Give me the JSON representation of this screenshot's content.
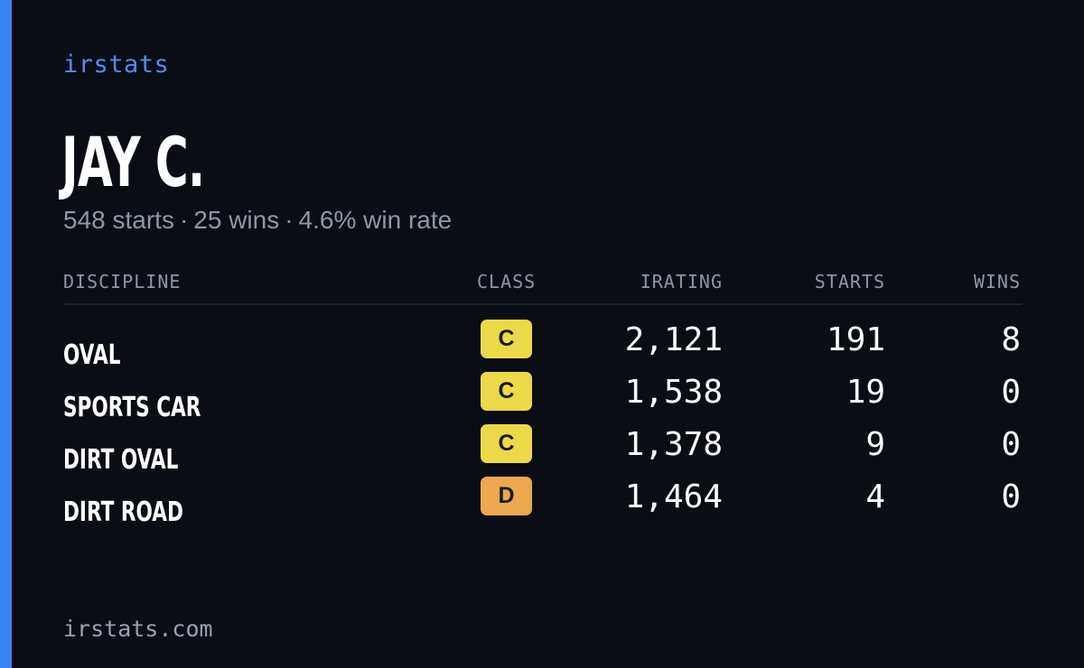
{
  "brand": "irstats",
  "player": {
    "name": "JAY C."
  },
  "summary": {
    "starts": "548 starts",
    "wins": "25 wins",
    "win_rate": "4.6% win rate",
    "separator": "·"
  },
  "table": {
    "headers": {
      "discipline": "DISCIPLINE",
      "class": "CLASS",
      "irating": "IRATING",
      "starts": "STARTS",
      "wins": "WINS"
    },
    "rows": [
      {
        "discipline": "OVAL",
        "class": "C",
        "class_color": "#ecd94a",
        "irating": "2,121",
        "starts": "191",
        "wins": "8"
      },
      {
        "discipline": "SPORTS CAR",
        "class": "C",
        "class_color": "#ecd94a",
        "irating": "1,538",
        "starts": "19",
        "wins": "0"
      },
      {
        "discipline": "DIRT OVAL",
        "class": "C",
        "class_color": "#ecd94a",
        "irating": "1,378",
        "starts": "9",
        "wins": "0"
      },
      {
        "discipline": "DIRT ROAD",
        "class": "D",
        "class_color": "#eba84e",
        "irating": "1,464",
        "starts": "4",
        "wins": "0"
      }
    ]
  },
  "footer": {
    "url": "irstats.com"
  },
  "colors": {
    "background": "#0a0d14",
    "accent": "#3b82f6",
    "brand_text": "#4f8df7",
    "muted_text": "#8e97a6"
  }
}
